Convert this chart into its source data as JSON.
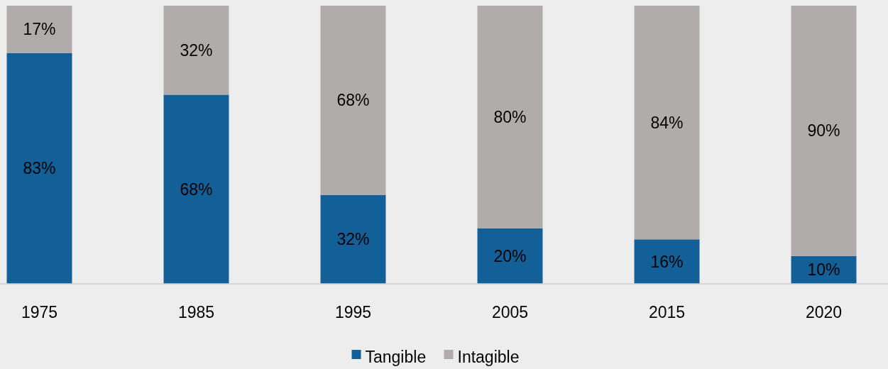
{
  "chart_data": {
    "type": "bar",
    "stacked": true,
    "categories": [
      "1975",
      "1985",
      "1995",
      "2005",
      "2015",
      "2020"
    ],
    "series": [
      {
        "name": "Tangible",
        "color": "#135f98",
        "values": [
          83,
          68,
          32,
          20,
          16,
          10
        ],
        "value_labels": [
          "83%",
          "68%",
          "32%",
          "20%",
          "16%",
          "10%"
        ]
      },
      {
        "name": "Intagible",
        "color": "#b0acab",
        "values": [
          17,
          32,
          68,
          80,
          84,
          90
        ],
        "value_labels": [
          "17%",
          "32%",
          "68%",
          "80%",
          "84%",
          "90%"
        ]
      }
    ],
    "ylim": [
      0,
      100
    ],
    "legend": "bottom"
  }
}
